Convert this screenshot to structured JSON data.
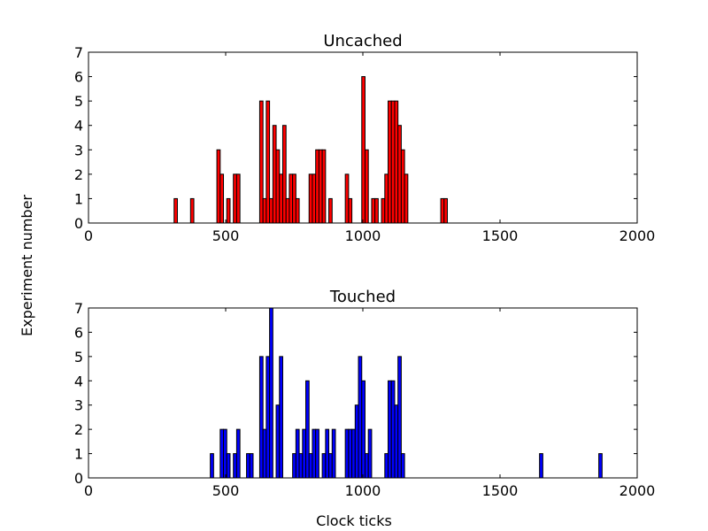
{
  "figure": {
    "shared_ylabel": "Experiment number",
    "shared_xlabel": "Clock ticks"
  },
  "chart_data": [
    {
      "type": "bar",
      "title": "Uncached",
      "bin_width": 12,
      "xlim": [
        0,
        2000
      ],
      "ylim": [
        0,
        7
      ],
      "x_ticks": [
        "0",
        "500",
        "1000",
        "1500",
        "2000"
      ],
      "y_ticks": [
        "0",
        "1",
        "2",
        "3",
        "4",
        "5",
        "6",
        "7"
      ],
      "grid": false,
      "bar_color": "#ff0000",
      "bins": [
        {
          "x": 312,
          "value": 1
        },
        {
          "x": 372,
          "value": 1
        },
        {
          "x": 468,
          "value": 3
        },
        {
          "x": 480,
          "value": 2
        },
        {
          "x": 492,
          "value": 0
        },
        {
          "x": 504,
          "value": 1
        },
        {
          "x": 528,
          "value": 2
        },
        {
          "x": 540,
          "value": 2
        },
        {
          "x": 624,
          "value": 5
        },
        {
          "x": 636,
          "value": 1
        },
        {
          "x": 648,
          "value": 5
        },
        {
          "x": 660,
          "value": 1
        },
        {
          "x": 672,
          "value": 4
        },
        {
          "x": 684,
          "value": 3
        },
        {
          "x": 696,
          "value": 2
        },
        {
          "x": 708,
          "value": 4
        },
        {
          "x": 720,
          "value": 1
        },
        {
          "x": 732,
          "value": 2
        },
        {
          "x": 744,
          "value": 2
        },
        {
          "x": 756,
          "value": 1
        },
        {
          "x": 804,
          "value": 2
        },
        {
          "x": 816,
          "value": 2
        },
        {
          "x": 828,
          "value": 3
        },
        {
          "x": 840,
          "value": 3
        },
        {
          "x": 852,
          "value": 3
        },
        {
          "x": 876,
          "value": 1
        },
        {
          "x": 936,
          "value": 2
        },
        {
          "x": 948,
          "value": 1
        },
        {
          "x": 996,
          "value": 6
        },
        {
          "x": 1008,
          "value": 3
        },
        {
          "x": 1032,
          "value": 1
        },
        {
          "x": 1044,
          "value": 1
        },
        {
          "x": 1068,
          "value": 1
        },
        {
          "x": 1080,
          "value": 2
        },
        {
          "x": 1092,
          "value": 5
        },
        {
          "x": 1104,
          "value": 5
        },
        {
          "x": 1116,
          "value": 5
        },
        {
          "x": 1128,
          "value": 4
        },
        {
          "x": 1140,
          "value": 3
        },
        {
          "x": 1152,
          "value": 2
        },
        {
          "x": 1284,
          "value": 1
        },
        {
          "x": 1296,
          "value": 1
        }
      ]
    },
    {
      "type": "bar",
      "title": "Touched",
      "bin_width": 12,
      "xlim": [
        0,
        2000
      ],
      "ylim": [
        0,
        7
      ],
      "x_ticks": [
        "0",
        "500",
        "1000",
        "1500",
        "2000"
      ],
      "y_ticks": [
        "0",
        "1",
        "2",
        "3",
        "4",
        "5",
        "6",
        "7"
      ],
      "grid": false,
      "bar_color": "#0000ff",
      "bins": [
        {
          "x": 444,
          "value": 1
        },
        {
          "x": 456,
          "value": 0
        },
        {
          "x": 480,
          "value": 2
        },
        {
          "x": 492,
          "value": 2
        },
        {
          "x": 504,
          "value": 1
        },
        {
          "x": 528,
          "value": 1
        },
        {
          "x": 540,
          "value": 2
        },
        {
          "x": 576,
          "value": 1
        },
        {
          "x": 588,
          "value": 1
        },
        {
          "x": 624,
          "value": 5
        },
        {
          "x": 636,
          "value": 2
        },
        {
          "x": 648,
          "value": 5
        },
        {
          "x": 660,
          "value": 7
        },
        {
          "x": 684,
          "value": 3
        },
        {
          "x": 696,
          "value": 5
        },
        {
          "x": 744,
          "value": 1
        },
        {
          "x": 756,
          "value": 2
        },
        {
          "x": 768,
          "value": 1
        },
        {
          "x": 780,
          "value": 2
        },
        {
          "x": 792,
          "value": 4
        },
        {
          "x": 804,
          "value": 1
        },
        {
          "x": 816,
          "value": 2
        },
        {
          "x": 828,
          "value": 2
        },
        {
          "x": 852,
          "value": 1
        },
        {
          "x": 864,
          "value": 2
        },
        {
          "x": 876,
          "value": 1
        },
        {
          "x": 888,
          "value": 2
        },
        {
          "x": 936,
          "value": 2
        },
        {
          "x": 948,
          "value": 2
        },
        {
          "x": 960,
          "value": 2
        },
        {
          "x": 972,
          "value": 3
        },
        {
          "x": 984,
          "value": 5
        },
        {
          "x": 996,
          "value": 4
        },
        {
          "x": 1008,
          "value": 1
        },
        {
          "x": 1020,
          "value": 2
        },
        {
          "x": 1080,
          "value": 1
        },
        {
          "x": 1092,
          "value": 4
        },
        {
          "x": 1104,
          "value": 4
        },
        {
          "x": 1116,
          "value": 3
        },
        {
          "x": 1128,
          "value": 5
        },
        {
          "x": 1140,
          "value": 1
        },
        {
          "x": 1644,
          "value": 1
        },
        {
          "x": 1860,
          "value": 1
        }
      ]
    }
  ]
}
